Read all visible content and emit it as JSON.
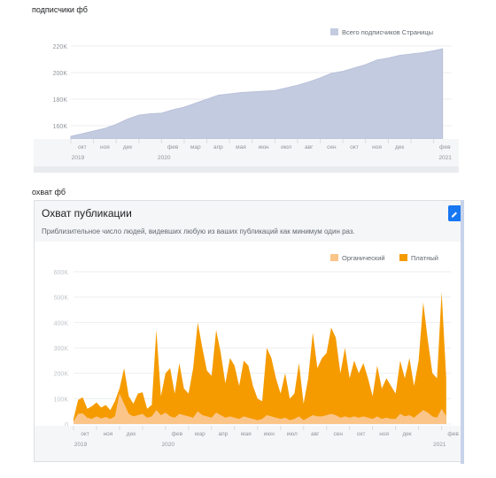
{
  "captions": {
    "first": "подписчики фб",
    "second": "охват фб"
  },
  "colors": {
    "followers_fill": "#c3cbe0",
    "organic": "#fbc58a",
    "paid": "#f59b00",
    "accent": "#1877f2"
  },
  "icons": {
    "edit": "pencil-icon"
  },
  "charts": [
    {
      "type": "area",
      "title": "",
      "legend": [
        "Всего подписчиков Страницы"
      ],
      "legend_position": "top-right",
      "y_ticks": [
        "160K",
        "180K",
        "200K",
        "220K"
      ],
      "ylim": [
        150000,
        228000
      ],
      "months": [
        "окт",
        "ноя",
        "дек",
        "",
        "фев",
        "мар",
        "апр",
        "мая",
        "июн",
        "июл",
        "авг",
        "сен",
        "окт",
        "ноя",
        "дек",
        "",
        "фев"
      ],
      "years": [
        "2019",
        "2020",
        "2021"
      ],
      "series": [
        {
          "name": "Всего подписчиков Страницы",
          "x": [
            0,
            0.5,
            1,
            1.5,
            2,
            2.5,
            3,
            3.5,
            4,
            4.5,
            5,
            5.5,
            6,
            6.5,
            7,
            7.5,
            8,
            8.5,
            9,
            9.5,
            10,
            10.5,
            11,
            11.5,
            12,
            12.5,
            13,
            13.5,
            14,
            14.5,
            15,
            15.5,
            16,
            16.4
          ],
          "values": [
            152000,
            154000,
            156000,
            158000,
            161000,
            165000,
            168000,
            169000,
            169500,
            172000,
            174000,
            177000,
            180000,
            183000,
            184000,
            185000,
            185500,
            186000,
            186500,
            188500,
            190500,
            193000,
            196000,
            199500,
            201000,
            203500,
            206000,
            209500,
            211000,
            213000,
            214000,
            215000,
            216500,
            218000
          ]
        }
      ]
    },
    {
      "type": "area",
      "title": "Охват публикации",
      "subtitle": "Приблизительное число людей, видевших любую из ваших публикаций как минимум один раз.",
      "legend": [
        "Органический",
        "Платный"
      ],
      "legend_position": "top-right",
      "y_ticks": [
        "0",
        "100K",
        "200K",
        "300K",
        "400K",
        "500K",
        "600K"
      ],
      "ylim": [
        0,
        600000
      ],
      "months": [
        "окт",
        "ноя",
        "дек",
        "",
        "фев",
        "мар",
        "апр",
        "мая",
        "июн",
        "июл",
        "авг",
        "сен",
        "окт",
        "ноя",
        "дек",
        "",
        "фев"
      ],
      "years": [
        "2019",
        "2020",
        "2021"
      ],
      "x": [
        0,
        0.2,
        0.4,
        0.6,
        0.8,
        1,
        1.2,
        1.4,
        1.6,
        1.8,
        2,
        2.2,
        2.4,
        2.6,
        2.8,
        3,
        3.2,
        3.4,
        3.6,
        3.8,
        4,
        4.2,
        4.4,
        4.6,
        4.8,
        5,
        5.2,
        5.4,
        5.6,
        5.8,
        6,
        6.2,
        6.4,
        6.6,
        6.8,
        7,
        7.2,
        7.4,
        7.6,
        7.8,
        8,
        8.2,
        8.4,
        8.6,
        8.8,
        9,
        9.2,
        9.4,
        9.6,
        9.8,
        10,
        10.2,
        10.4,
        10.6,
        10.8,
        11,
        11.2,
        11.4,
        11.6,
        11.8,
        12,
        12.2,
        12.4,
        12.6,
        12.8,
        13,
        13.2,
        13.4,
        13.6,
        13.8,
        14,
        14.2,
        14.4,
        14.6,
        14.8,
        15,
        15.2,
        15.4,
        15.6,
        15.8,
        16,
        16.2
      ],
      "series": [
        {
          "name": "Платный",
          "values": [
            20000,
            95000,
            105000,
            60000,
            70000,
            85000,
            65000,
            75000,
            55000,
            90000,
            140000,
            220000,
            110000,
            80000,
            120000,
            125000,
            60000,
            75000,
            370000,
            110000,
            200000,
            220000,
            120000,
            240000,
            140000,
            120000,
            220000,
            400000,
            300000,
            210000,
            190000,
            370000,
            280000,
            160000,
            260000,
            230000,
            150000,
            250000,
            230000,
            150000,
            100000,
            90000,
            300000,
            260000,
            180000,
            120000,
            200000,
            100000,
            120000,
            240000,
            80000,
            180000,
            360000,
            220000,
            260000,
            280000,
            380000,
            340000,
            200000,
            300000,
            180000,
            250000,
            200000,
            240000,
            180000,
            110000,
            230000,
            140000,
            180000,
            150000,
            120000,
            250000,
            180000,
            260000,
            150000,
            250000,
            480000,
            330000,
            200000,
            180000,
            520000,
            180000
          ]
        },
        {
          "name": "Органический",
          "values": [
            10000,
            40000,
            42000,
            25000,
            20000,
            30000,
            22000,
            28000,
            20000,
            30000,
            120000,
            80000,
            40000,
            30000,
            35000,
            40000,
            25000,
            30000,
            55000,
            35000,
            45000,
            30000,
            25000,
            40000,
            35000,
            30000,
            25000,
            50000,
            35000,
            30000,
            25000,
            45000,
            35000,
            25000,
            30000,
            25000,
            20000,
            30000,
            25000,
            20000,
            15000,
            20000,
            35000,
            30000,
            25000,
            20000,
            25000,
            15000,
            20000,
            30000,
            15000,
            25000,
            35000,
            30000,
            30000,
            35000,
            40000,
            35000,
            25000,
            30000,
            25000,
            30000,
            25000,
            30000,
            25000,
            20000,
            30000,
            20000,
            25000,
            20000,
            20000,
            40000,
            30000,
            35000,
            25000,
            40000,
            55000,
            45000,
            30000,
            25000,
            60000,
            30000
          ]
        }
      ]
    }
  ]
}
